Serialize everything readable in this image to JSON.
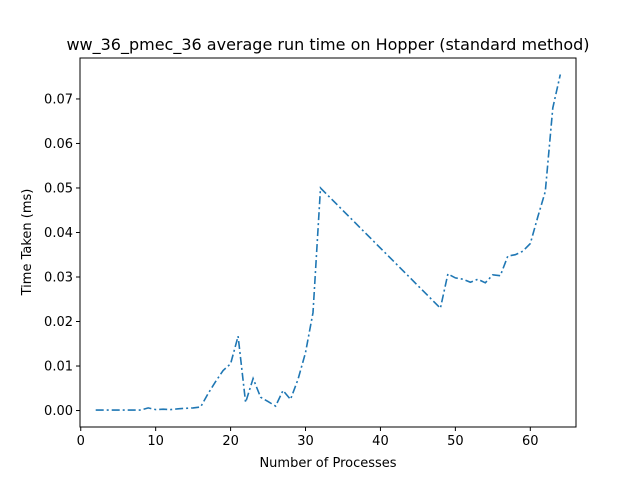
{
  "chart_data": {
    "type": "line",
    "title": "ww_36_pmec_36 average run time on Hopper (standard method)",
    "xlabel": "Number of Processes",
    "ylabel": "Time Taken (ms)",
    "xlim": [
      -0.1,
      66.1
    ],
    "ylim": [
      -0.0037,
      0.0792
    ],
    "xticks": [
      0,
      10,
      20,
      30,
      40,
      50,
      60
    ],
    "yticks": [
      0.0,
      0.01,
      0.02,
      0.03,
      0.04,
      0.05,
      0.06,
      0.07
    ],
    "ytick_labels": [
      "0.00",
      "0.01",
      "0.02",
      "0.03",
      "0.04",
      "0.05",
      "0.06",
      "0.07"
    ],
    "grid": false,
    "line_style": "dashdot",
    "series": [
      {
        "color": "#1f77b4",
        "x": [
          2,
          3,
          4,
          5,
          6,
          7,
          8,
          9,
          10,
          11,
          12,
          13,
          14,
          15,
          16,
          17,
          18,
          19,
          20,
          21,
          22,
          23,
          24,
          25,
          26,
          27,
          28,
          29,
          30,
          31,
          32,
          48,
          49,
          50,
          51,
          52,
          53,
          54,
          55,
          56,
          57,
          58,
          59,
          60,
          61,
          62,
          63,
          64
        ],
        "y": [
          0.0001,
          0.0001,
          0.0001,
          0.0001,
          0.0001,
          0.0001,
          0.0001,
          0.0006,
          0.0002,
          0.0003,
          0.0002,
          0.0004,
          0.0005,
          0.0006,
          0.0008,
          0.0038,
          0.0065,
          0.009,
          0.0105,
          0.0167,
          0.0018,
          0.0072,
          0.003,
          0.002,
          0.001,
          0.0045,
          0.0025,
          0.007,
          0.013,
          0.022,
          0.05,
          0.023,
          0.0307,
          0.0298,
          0.0295,
          0.0288,
          0.0295,
          0.0287,
          0.0305,
          0.0303,
          0.0347,
          0.035,
          0.0358,
          0.0375,
          0.0435,
          0.0492,
          0.068,
          0.0755
        ]
      }
    ]
  }
}
